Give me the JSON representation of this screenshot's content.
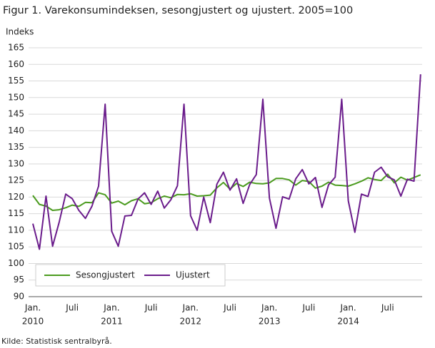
{
  "chart_data": {
    "type": "line",
    "title": "Figur 1. Varekonsumindeksen, sesongjustert og ujustert. 2005=100",
    "y_axis_label": "Indeks",
    "source": "Kilde: Statistisk sentralbyrå.",
    "categories": [
      "Jan.",
      null,
      null,
      null,
      null,
      null,
      "Juli",
      null,
      null,
      null,
      null,
      null,
      "Jan.",
      null,
      null,
      null,
      null,
      null,
      "Juli",
      null,
      null,
      null,
      null,
      null,
      "Jan.",
      null,
      null,
      null,
      null,
      null,
      "Juli",
      null,
      null,
      null,
      null,
      null,
      "Jan.",
      null,
      null,
      null,
      null,
      null,
      "Juli",
      null,
      null,
      null,
      null,
      null,
      "Jan.",
      null,
      null,
      null,
      null,
      null,
      "Juli",
      null,
      null,
      null,
      null,
      null
    ],
    "x_group_labels": [
      "2010",
      "2011",
      "2012",
      "2013",
      "2014"
    ],
    "series": [
      {
        "name": "Sesongjustert",
        "color": "#4b9b1f",
        "values": [
          120.5,
          117.8,
          117.3,
          116.0,
          116.2,
          116.8,
          117.6,
          117.2,
          118.4,
          118.3,
          121.3,
          120.7,
          118.2,
          118.8,
          117.7,
          118.9,
          119.5,
          118.0,
          118.3,
          119.5,
          120.3,
          119.8,
          120.8,
          120.7,
          121.0,
          120.3,
          120.4,
          120.6,
          122.8,
          124.4,
          122.4,
          124.1,
          123.2,
          124.5,
          124.1,
          124.0,
          124.3,
          125.6,
          125.6,
          125.2,
          123.6,
          125.0,
          124.7,
          122.7,
          123.3,
          124.5,
          123.6,
          123.5,
          123.3,
          124.0,
          124.8,
          125.8,
          125.3,
          125.0,
          126.9,
          124.3,
          126.0,
          125.1,
          125.9,
          126.7
        ]
      },
      {
        "name": "Ujustert",
        "color": "#6b1d8c",
        "values": [
          112.0,
          104.3,
          120.3,
          105.2,
          112.4,
          120.9,
          119.5,
          116.0,
          113.6,
          117.3,
          123.3,
          148.0,
          109.7,
          105.2,
          114.3,
          114.5,
          119.4,
          121.3,
          117.8,
          121.8,
          116.7,
          119.2,
          123.4,
          148.0,
          114.4,
          110.0,
          120.0,
          112.3,
          123.9,
          127.5,
          122.1,
          125.5,
          118.1,
          123.8,
          126.8,
          149.5,
          119.7,
          110.6,
          120.1,
          119.4,
          125.5,
          128.3,
          124.0,
          125.9,
          116.9,
          123.7,
          126.0,
          149.5,
          118.9,
          109.4,
          120.9,
          120.2,
          127.5,
          129.0,
          126.1,
          125.2,
          120.3,
          125.4,
          124.8,
          157.0
        ]
      }
    ],
    "ylim": [
      90,
      165
    ],
    "yticks": [
      90,
      95,
      100,
      105,
      110,
      115,
      120,
      125,
      130,
      135,
      140,
      145,
      150,
      155,
      160,
      165
    ],
    "grid": true,
    "legend": "bottom-left"
  }
}
